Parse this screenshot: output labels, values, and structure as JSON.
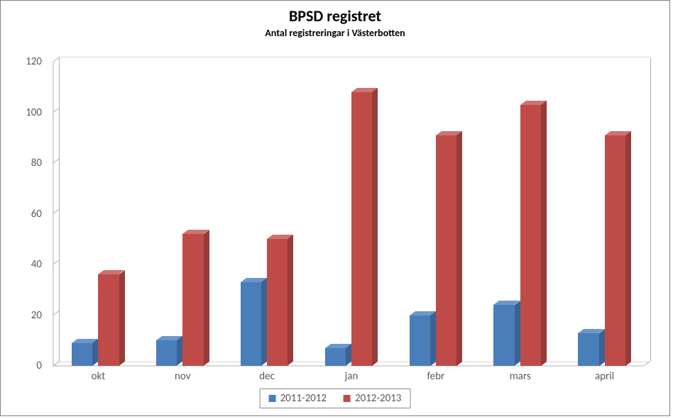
{
  "chart": {
    "type": "bar",
    "title": "BPSD registret",
    "title_fontsize": 22,
    "title_fontweight": "bold",
    "subtitle": "Antal registreringar i Västerbotten",
    "subtitle_fontsize": 14,
    "subtitle_fontweight": "bold",
    "categories": [
      "okt",
      "nov",
      "dec",
      "jan",
      "febr",
      "mars",
      "april"
    ],
    "series": [
      {
        "name": "2011-2012",
        "color": "#4a7ebb",
        "color_dark": "#3a6394",
        "color_light": "#6e97c9",
        "values": [
          9,
          10,
          33,
          7,
          20,
          24,
          13
        ]
      },
      {
        "name": "2012-2013",
        "color": "#be4b48",
        "color_dark": "#963b39",
        "color_light": "#cd7371",
        "values": [
          36,
          52,
          50,
          108,
          91,
          103,
          91
        ]
      }
    ],
    "ylim": [
      0,
      120
    ],
    "ytick_step": 20,
    "yticks": [
      0,
      20,
      40,
      60,
      80,
      100,
      120
    ],
    "axis_label_fontsize": 15,
    "axis_label_color": "#595959",
    "background_color": "#ffffff",
    "grid_color": "#b0b0b0",
    "frame_border_color": "#808080",
    "legend_border_color": "#8a8a8a",
    "depth_x": 8,
    "depth_y": 6,
    "bar_cluster_width_ratio": 0.56,
    "bar_gap_ratio": 0.12
  }
}
